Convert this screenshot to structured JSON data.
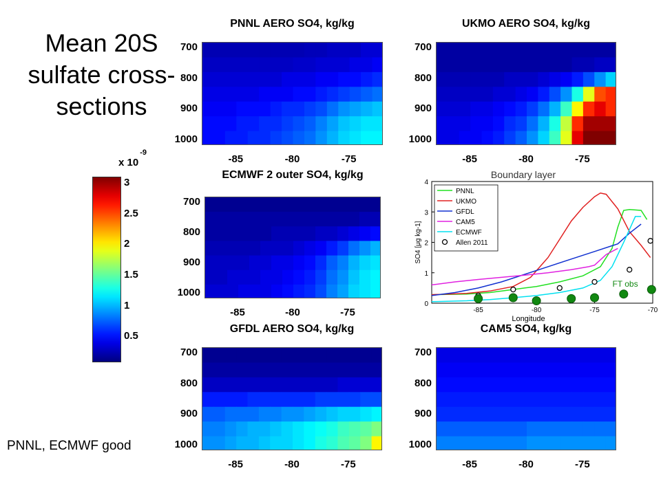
{
  "page": {
    "title": "Mean 20S\nsulfate cross-\nsections",
    "note": "PNNL, ECMWF good"
  },
  "colorbar": {
    "exponent_base": "x 10",
    "exponent_power": "-9",
    "ticks": [
      "3",
      "2.5",
      "2",
      "1.5",
      "1",
      "0.5"
    ],
    "range": [
      0.1,
      3.1
    ],
    "colormap": "jet"
  },
  "chart_data": [
    {
      "type": "heatmap",
      "title": "PNNL AERO SO4, kg/kg",
      "x_ticks": [
        "-85",
        "-80",
        "-75"
      ],
      "y_ticks": [
        "700",
        "800",
        "900",
        "1000"
      ],
      "x": [
        -87.5,
        -86.5,
        -85.5,
        -84.5,
        -83.5,
        -82.5,
        -81.5,
        -80.5,
        -79.5,
        -78.5,
        -77.5,
        -76.5,
        -75.5,
        -74.5,
        -73.5,
        -72.5
      ],
      "y": [
        700,
        750,
        800,
        850,
        900,
        950,
        1000
      ],
      "values": [
        [
          0.25,
          0.25,
          0.25,
          0.25,
          0.25,
          0.25,
          0.25,
          0.25,
          0.25,
          0.27,
          0.27,
          0.3,
          0.3,
          0.3,
          0.35,
          0.35
        ],
        [
          0.3,
          0.3,
          0.3,
          0.3,
          0.3,
          0.3,
          0.3,
          0.3,
          0.32,
          0.32,
          0.35,
          0.35,
          0.35,
          0.4,
          0.4,
          0.45
        ],
        [
          0.35,
          0.35,
          0.35,
          0.35,
          0.35,
          0.35,
          0.35,
          0.4,
          0.4,
          0.4,
          0.45,
          0.45,
          0.5,
          0.5,
          0.55,
          0.6
        ],
        [
          0.4,
          0.4,
          0.4,
          0.4,
          0.4,
          0.45,
          0.45,
          0.45,
          0.5,
          0.5,
          0.55,
          0.6,
          0.65,
          0.7,
          0.75,
          0.8
        ],
        [
          0.45,
          0.45,
          0.45,
          0.5,
          0.5,
          0.5,
          0.55,
          0.6,
          0.6,
          0.65,
          0.7,
          0.8,
          0.9,
          0.95,
          1.0,
          1.05
        ],
        [
          0.5,
          0.5,
          0.5,
          0.55,
          0.55,
          0.6,
          0.6,
          0.65,
          0.7,
          0.75,
          0.85,
          0.95,
          1.05,
          1.1,
          1.15,
          1.15
        ],
        [
          0.5,
          0.5,
          0.55,
          0.55,
          0.6,
          0.6,
          0.65,
          0.7,
          0.75,
          0.8,
          0.9,
          1.0,
          1.1,
          1.15,
          1.2,
          1.2
        ]
      ]
    },
    {
      "type": "heatmap",
      "title": "UKMO AERO SO4, kg/kg",
      "x_ticks": [
        "-85",
        "-80",
        "-75"
      ],
      "y_ticks": [
        "700",
        "800",
        "900",
        "1000"
      ],
      "x": [
        -87.5,
        -86.5,
        -85.5,
        -84.5,
        -83.5,
        -82.5,
        -81.5,
        -80.5,
        -79.5,
        -78.5,
        -77.5,
        -76.5,
        -75.5,
        -74.5,
        -73.5,
        -72.5
      ],
      "y": [
        700,
        750,
        800,
        850,
        900,
        950,
        1000
      ],
      "values": [
        [
          0.2,
          0.2,
          0.2,
          0.2,
          0.2,
          0.2,
          0.2,
          0.2,
          0.2,
          0.2,
          0.2,
          0.2,
          0.2,
          0.2,
          0.2,
          0.2
        ],
        [
          0.2,
          0.2,
          0.2,
          0.2,
          0.2,
          0.2,
          0.2,
          0.2,
          0.2,
          0.2,
          0.2,
          0.2,
          0.25,
          0.25,
          0.3,
          0.3
        ],
        [
          0.25,
          0.25,
          0.25,
          0.25,
          0.25,
          0.25,
          0.3,
          0.3,
          0.3,
          0.35,
          0.4,
          0.45,
          0.55,
          0.7,
          0.9,
          1.1
        ],
        [
          0.3,
          0.3,
          0.3,
          0.3,
          0.3,
          0.35,
          0.35,
          0.4,
          0.45,
          0.55,
          0.7,
          0.9,
          1.3,
          1.9,
          2.5,
          2.6
        ],
        [
          0.35,
          0.35,
          0.35,
          0.4,
          0.4,
          0.45,
          0.5,
          0.55,
          0.65,
          0.8,
          1.0,
          1.4,
          2.0,
          2.6,
          2.8,
          2.6
        ],
        [
          0.4,
          0.4,
          0.4,
          0.45,
          0.45,
          0.5,
          0.6,
          0.65,
          0.8,
          1.0,
          1.3,
          1.8,
          2.6,
          3.0,
          3.0,
          3.0
        ],
        [
          0.4,
          0.4,
          0.45,
          0.45,
          0.5,
          0.55,
          0.65,
          0.75,
          0.9,
          1.1,
          1.4,
          1.9,
          2.8,
          3.1,
          3.1,
          3.1
        ]
      ]
    },
    {
      "type": "heatmap",
      "title": "ECMWF 2 outer SO4, kg/kg",
      "x_ticks": [
        "-85",
        "-80",
        "-75"
      ],
      "y_ticks": [
        "700",
        "800",
        "900",
        "1000"
      ],
      "x": [
        -87.5,
        -86.5,
        -85.5,
        -84.5,
        -83.5,
        -82.5,
        -81.5,
        -80.5,
        -79.5,
        -78.5,
        -77.5,
        -76.5,
        -75.5,
        -74.5,
        -73.5,
        -72.5
      ],
      "y": [
        700,
        750,
        800,
        850,
        900,
        950,
        1000
      ],
      "values": [
        [
          0.15,
          0.15,
          0.15,
          0.15,
          0.15,
          0.15,
          0.15,
          0.15,
          0.15,
          0.15,
          0.15,
          0.15,
          0.15,
          0.15,
          0.15,
          0.15
        ],
        [
          0.2,
          0.2,
          0.2,
          0.2,
          0.2,
          0.2,
          0.2,
          0.2,
          0.2,
          0.2,
          0.2,
          0.2,
          0.2,
          0.2,
          0.25,
          0.25
        ],
        [
          0.2,
          0.2,
          0.2,
          0.2,
          0.2,
          0.2,
          0.25,
          0.25,
          0.25,
          0.25,
          0.3,
          0.3,
          0.35,
          0.4,
          0.45,
          0.5
        ],
        [
          0.25,
          0.25,
          0.25,
          0.25,
          0.25,
          0.3,
          0.3,
          0.3,
          0.35,
          0.4,
          0.45,
          0.55,
          0.65,
          0.8,
          0.9,
          1.0
        ],
        [
          0.3,
          0.3,
          0.3,
          0.3,
          0.35,
          0.35,
          0.4,
          0.4,
          0.45,
          0.5,
          0.6,
          0.75,
          0.85,
          1.0,
          1.1,
          1.15
        ],
        [
          0.3,
          0.3,
          0.35,
          0.35,
          0.35,
          0.4,
          0.4,
          0.45,
          0.5,
          0.55,
          0.65,
          0.8,
          0.9,
          1.05,
          1.15,
          1.2
        ],
        [
          0.35,
          0.35,
          0.35,
          0.4,
          0.4,
          0.4,
          0.45,
          0.5,
          0.55,
          0.6,
          0.7,
          0.85,
          0.95,
          1.1,
          1.15,
          1.2
        ]
      ]
    },
    {
      "type": "heatmap",
      "title": "GFDL AERO SO4, kg/kg",
      "x_ticks": [
        "-85",
        "-80",
        "-75"
      ],
      "y_ticks": [
        "700",
        "800",
        "900",
        "1000"
      ],
      "x": [
        -87.5,
        -86.5,
        -85.5,
        -84.5,
        -83.5,
        -82.5,
        -81.5,
        -80.5,
        -79.5,
        -78.5,
        -77.5,
        -76.5,
        -75.5,
        -74.5,
        -73.5,
        -72.5
      ],
      "y": [
        700,
        750,
        800,
        850,
        900,
        950,
        1000
      ],
      "values": [
        [
          0.15,
          0.15,
          0.15,
          0.15,
          0.15,
          0.15,
          0.15,
          0.15,
          0.15,
          0.15,
          0.15,
          0.15,
          0.15,
          0.15,
          0.15,
          0.15
        ],
        [
          0.2,
          0.2,
          0.2,
          0.2,
          0.2,
          0.2,
          0.2,
          0.2,
          0.2,
          0.2,
          0.2,
          0.2,
          0.2,
          0.2,
          0.2,
          0.2
        ],
        [
          0.3,
          0.3,
          0.3,
          0.3,
          0.3,
          0.3,
          0.3,
          0.3,
          0.3,
          0.3,
          0.3,
          0.3,
          0.35,
          0.35,
          0.35,
          0.35
        ],
        [
          0.55,
          0.55,
          0.55,
          0.55,
          0.6,
          0.6,
          0.6,
          0.6,
          0.6,
          0.6,
          0.65,
          0.65,
          0.65,
          0.65,
          0.7,
          0.7
        ],
        [
          0.75,
          0.75,
          0.8,
          0.8,
          0.8,
          0.85,
          0.85,
          0.9,
          0.9,
          0.95,
          1.0,
          1.05,
          1.1,
          1.1,
          1.15,
          1.2
        ],
        [
          0.85,
          0.85,
          0.9,
          0.95,
          1.0,
          1.0,
          1.05,
          1.1,
          1.15,
          1.2,
          1.25,
          1.3,
          1.4,
          1.45,
          1.5,
          1.6
        ],
        [
          0.9,
          0.9,
          0.95,
          1.0,
          1.0,
          1.05,
          1.1,
          1.1,
          1.15,
          1.2,
          1.3,
          1.35,
          1.45,
          1.5,
          1.6,
          2.0
        ]
      ]
    },
    {
      "type": "heatmap",
      "title": "CAM5 SO4, kg/kg",
      "x_ticks": [
        "-85",
        "-80",
        "-75"
      ],
      "y_ticks": [
        "700",
        "800",
        "900",
        "1000"
      ],
      "x": [
        -87.5,
        -86.5,
        -85.5,
        -84.5,
        -83.5,
        -82.5,
        -81.5,
        -80.5,
        -79.5,
        -78.5,
        -77.5,
        -76.5,
        -75.5,
        -74.5,
        -73.5,
        -72.5
      ],
      "y": [
        700,
        750,
        800,
        850,
        900,
        950,
        1000
      ],
      "values": [
        [
          0.4,
          0.4,
          0.4,
          0.4,
          0.4,
          0.4,
          0.4,
          0.4,
          0.4,
          0.4,
          0.4,
          0.4,
          0.4,
          0.4,
          0.4,
          0.4
        ],
        [
          0.45,
          0.45,
          0.45,
          0.45,
          0.45,
          0.45,
          0.45,
          0.45,
          0.45,
          0.45,
          0.45,
          0.45,
          0.45,
          0.45,
          0.45,
          0.45
        ],
        [
          0.5,
          0.5,
          0.5,
          0.5,
          0.5,
          0.5,
          0.5,
          0.5,
          0.5,
          0.5,
          0.5,
          0.5,
          0.5,
          0.5,
          0.5,
          0.5
        ],
        [
          0.55,
          0.55,
          0.55,
          0.55,
          0.55,
          0.55,
          0.55,
          0.55,
          0.55,
          0.55,
          0.55,
          0.55,
          0.55,
          0.55,
          0.55,
          0.55
        ],
        [
          0.6,
          0.6,
          0.6,
          0.6,
          0.6,
          0.6,
          0.6,
          0.6,
          0.6,
          0.6,
          0.6,
          0.6,
          0.6,
          0.6,
          0.6,
          0.6
        ],
        [
          0.75,
          0.75,
          0.75,
          0.75,
          0.75,
          0.75,
          0.75,
          0.75,
          0.8,
          0.8,
          0.8,
          0.8,
          0.8,
          0.8,
          0.8,
          0.8
        ],
        [
          0.85,
          0.85,
          0.85,
          0.85,
          0.85,
          0.85,
          0.85,
          0.85,
          0.9,
          0.9,
          0.9,
          0.9,
          0.9,
          0.9,
          0.9,
          0.9
        ]
      ]
    },
    {
      "type": "line",
      "title": "",
      "annotation_top": "Boundary layer",
      "annotation_obs": "FT obs",
      "xlabel": "Longitude",
      "ylabel": "SO4 [μg kg-1]",
      "xlim": [
        -89,
        -70
      ],
      "ylim": [
        0,
        4
      ],
      "x_ticks": [
        "-85",
        "-80",
        "-75",
        "-70"
      ],
      "y_ticks": [
        "0",
        "1",
        "2",
        "3",
        "4"
      ],
      "legend_position": "top-left",
      "series": [
        {
          "name": "PNNL",
          "color": "#20e020",
          "x": [
            -89,
            -86,
            -84,
            -82,
            -80,
            -78,
            -76,
            -74.5,
            -73.5,
            -73,
            -72.5,
            -72,
            -71,
            -70.5
          ],
          "y": [
            0.28,
            0.3,
            0.35,
            0.45,
            0.55,
            0.7,
            0.9,
            1.2,
            1.8,
            2.5,
            3.05,
            3.08,
            3.05,
            2.75
          ]
        },
        {
          "name": "UKMO",
          "color": "#e02020",
          "x": [
            -89,
            -86,
            -84,
            -82,
            -80.5,
            -79,
            -78,
            -77,
            -76,
            -75,
            -74.5,
            -74,
            -73,
            -72,
            -71,
            -70.2
          ],
          "y": [
            0.28,
            0.32,
            0.4,
            0.55,
            0.85,
            1.5,
            2.1,
            2.7,
            3.15,
            3.5,
            3.62,
            3.58,
            3.1,
            2.35,
            1.9,
            1.5
          ]
        },
        {
          "name": "GFDL",
          "color": "#1030d0",
          "x": [
            -89,
            -87,
            -85,
            -83,
            -81,
            -79,
            -77,
            -75,
            -73,
            -72,
            -71
          ],
          "y": [
            0.25,
            0.35,
            0.5,
            0.7,
            0.95,
            1.2,
            1.45,
            1.7,
            1.95,
            2.3,
            2.6
          ]
        },
        {
          "name": "CAM5",
          "color": "#e020e0",
          "x": [
            -89,
            -87,
            -85,
            -83,
            -81,
            -79,
            -77,
            -75.5,
            -75,
            -74,
            -73
          ],
          "y": [
            0.6,
            0.7,
            0.78,
            0.85,
            0.92,
            1.0,
            1.1,
            1.2,
            1.25,
            1.6,
            1.8
          ]
        },
        {
          "name": "ECMWF",
          "color": "#00e0f0",
          "x": [
            -89,
            -86,
            -84,
            -82,
            -80,
            -78,
            -76,
            -74.5,
            -73.5,
            -72.5,
            -71.5,
            -71
          ],
          "y": [
            0.05,
            0.08,
            0.12,
            0.18,
            0.25,
            0.35,
            0.5,
            0.75,
            1.2,
            2.0,
            2.85,
            2.85
          ]
        },
        {
          "name": "Allen 2011",
          "color": "#000000",
          "marker": "open-circle",
          "x": [
            -85,
            -82,
            -78,
            -75,
            -72,
            -70.2
          ],
          "y": [
            0.25,
            0.45,
            0.5,
            0.7,
            1.1,
            2.05
          ]
        },
        {
          "name": "",
          "color": "#118811",
          "marker": "filled-circle",
          "x": [
            -85,
            -82,
            -80,
            -77,
            -75,
            -72.5,
            -70.1
          ],
          "y": [
            0.15,
            0.18,
            0.08,
            0.15,
            0.18,
            0.3,
            0.45
          ]
        }
      ]
    }
  ]
}
